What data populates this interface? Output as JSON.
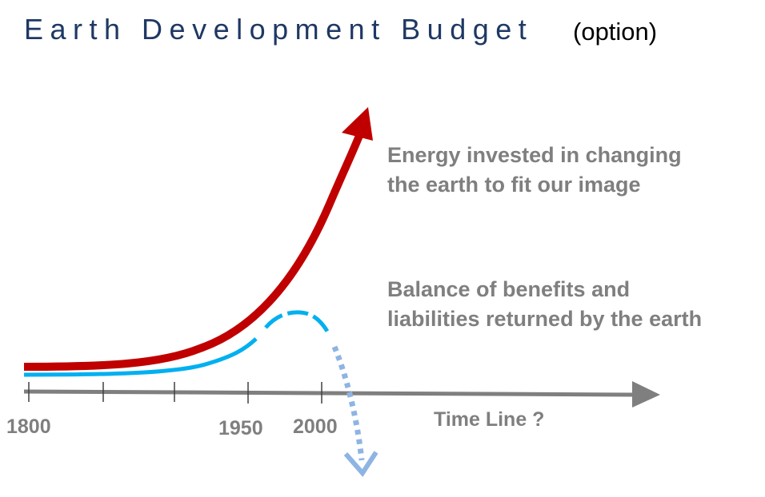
{
  "title": {
    "main": "Earth Development Budget",
    "note": "(option)"
  },
  "annotations": {
    "energy_line1": "Energy invested in changing",
    "energy_line2": "the earth to fit our image",
    "balance_line1": "Balance of benefits and",
    "balance_line2": "liabilities returned by the earth"
  },
  "axis": {
    "label": "Time Line ?",
    "ticks": [
      "1800",
      "1950",
      "2000"
    ]
  },
  "colors": {
    "title": "#1f3864",
    "energy_curve": "#c00000",
    "balance_curve": "#00b0f0",
    "projection": "#8eb4e3",
    "axis": "#7f7f7f",
    "annotation_text": "#7f7f7f"
  }
}
